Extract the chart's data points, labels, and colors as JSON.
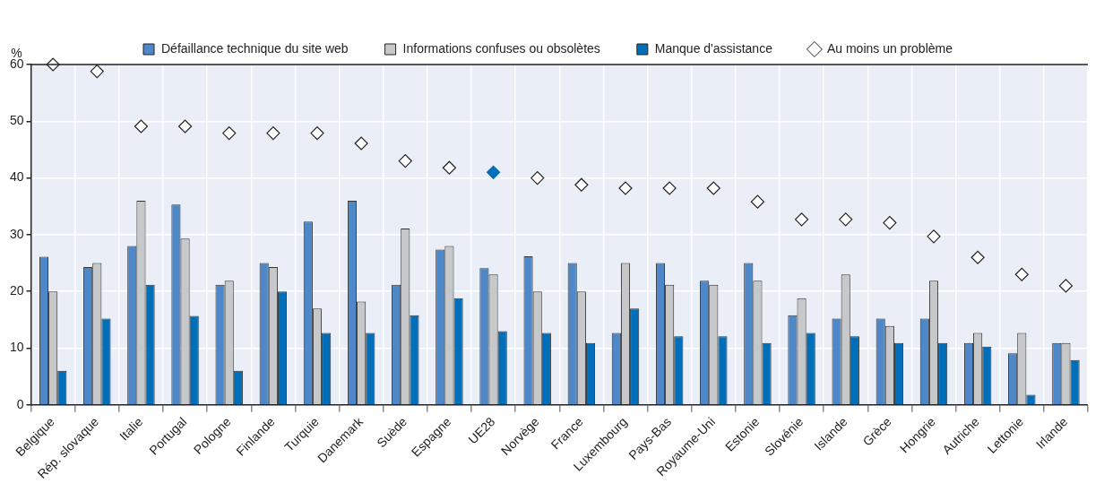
{
  "chart_data": {
    "type": "bar",
    "ylabel": "%",
    "categories": [
      "Belgique",
      "Rép. slovaque",
      "Italie",
      "Portugal",
      "Pologne",
      "Finlande",
      "Turquie",
      "Danemark",
      "Suède",
      "Espagne",
      "UE28",
      "Norvège",
      "France",
      "Luxembourg",
      "Pays-Bas",
      "Royaume-Uni",
      "Estonie",
      "Slovénie",
      "Islande",
      "Grèce",
      "Hongrie",
      "Autriche",
      "Lettonie",
      "Irlande"
    ],
    "series": [
      {
        "name": "Défaillance technique du site web",
        "color": "#4e88c8",
        "values": [
          26.1,
          24.3,
          28,
          35.3,
          21.2,
          25,
          32.3,
          36,
          21.2,
          27.4,
          24.1,
          26.2,
          25,
          12.7,
          25,
          21.9,
          25,
          15.8,
          15.2,
          15.2,
          15.2,
          10.9,
          9.1,
          10.9
        ]
      },
      {
        "name": "Informations confuses ou obsolètes",
        "color": "#c6c8ca",
        "values": [
          20,
          25,
          36,
          29.3,
          21.9,
          24.3,
          17,
          18.2,
          31.1,
          28,
          23,
          20,
          20,
          25,
          21.2,
          21.2,
          21.9,
          18.8,
          23,
          13.9,
          21.9,
          12.7,
          12.7,
          10.9
        ]
      },
      {
        "name": "Manque d'assistance",
        "color": "#006fba",
        "values": [
          6,
          15.2,
          21.2,
          15.7,
          6,
          20,
          12.7,
          12.7,
          15.8,
          18.8,
          13,
          12.7,
          10.9,
          17,
          12.1,
          12.1,
          10.9,
          12.7,
          12.1,
          10.9,
          10.9,
          10.3,
          1.8,
          7.9
        ]
      },
      {
        "name": "Au moins un problème",
        "type": "scatter",
        "marker": "diamond",
        "color": "#ffffff",
        "colors": [
          "#ffffff",
          "#ffffff",
          "#ffffff",
          "#ffffff",
          "#ffffff",
          "#ffffff",
          "#ffffff",
          "#ffffff",
          "#ffffff",
          "#ffffff",
          "#006fba",
          "#ffffff",
          "#ffffff",
          "#ffffff",
          "#ffffff",
          "#ffffff",
          "#ffffff",
          "#ffffff",
          "#ffffff",
          "#ffffff",
          "#ffffff",
          "#ffffff",
          "#ffffff",
          "#ffffff"
        ],
        "values": [
          60,
          58.8,
          49.1,
          49.1,
          47.9,
          47.9,
          47.9,
          46.1,
          43,
          41.8,
          41,
          40,
          38.8,
          38.2,
          38.2,
          38.2,
          35.8,
          32.7,
          32.7,
          32.1,
          29.7,
          26,
          23,
          21
        ]
      }
    ],
    "ylim": [
      0,
      60
    ],
    "yticks": [
      0,
      10,
      20,
      30,
      40,
      50,
      60
    ],
    "grid": true,
    "legend": "top"
  }
}
